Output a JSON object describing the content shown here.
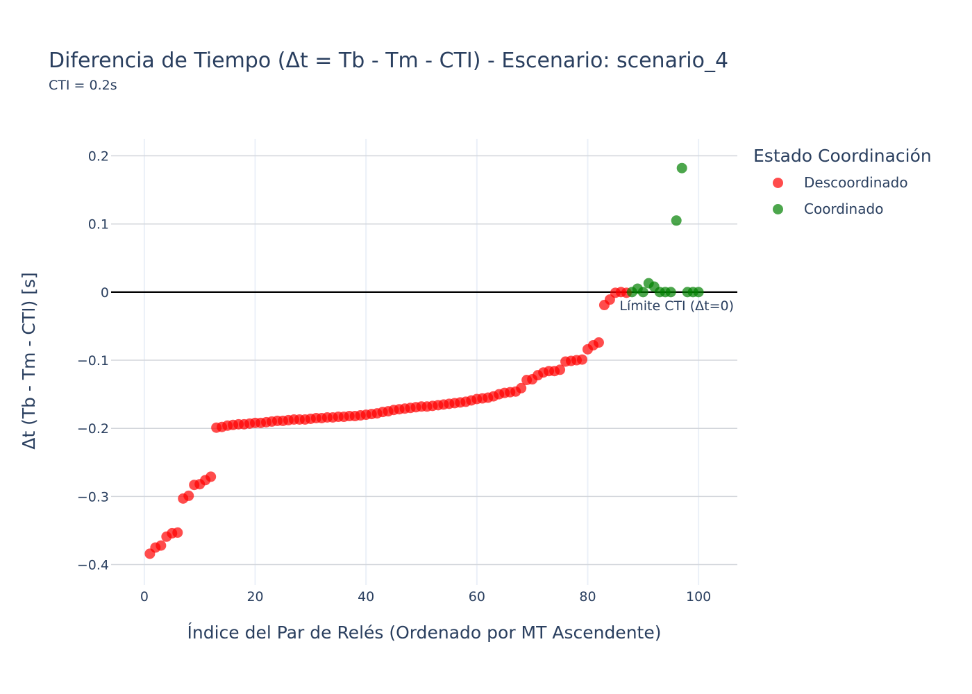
{
  "chart_data": {
    "type": "scatter",
    "title": "Diferencia de Tiempo (Δt = Tb - Tm - CTI) - Escenario: scenario_4",
    "subtitle": "CTI = 0.2s",
    "xlabel": "Índice del Par de Relés (Ordenado por MT Ascendente)",
    "ylabel": "Δt (Tb - Tm - CTI) [s]",
    "xlim": [
      -6,
      107
    ],
    "ylim": [
      -0.43,
      0.225
    ],
    "x_ticks": [
      {
        "value": 0,
        "label": "0"
      },
      {
        "value": 20,
        "label": "20"
      },
      {
        "value": 40,
        "label": "40"
      },
      {
        "value": 60,
        "label": "60"
      },
      {
        "value": 80,
        "label": "80"
      },
      {
        "value": 100,
        "label": "100"
      }
    ],
    "y_ticks": [
      {
        "value": 0.2,
        "label": "0.2"
      },
      {
        "value": 0.1,
        "label": "0.1"
      },
      {
        "value": 0,
        "label": "0"
      },
      {
        "value": -0.1,
        "label": "−0.1"
      },
      {
        "value": -0.2,
        "label": "−0.2"
      },
      {
        "value": -0.3,
        "label": "−0.3"
      },
      {
        "value": -0.4,
        "label": "−0.4"
      }
    ],
    "grid": true,
    "legend_title": "Estado Coordinación",
    "legend_position": "right",
    "reference_line": {
      "y": 0,
      "label": "Límite CTI (Δt=0)"
    },
    "series": [
      {
        "name": "Descoordinado",
        "color": "#ff0000",
        "points": [
          [
            1,
            -0.384
          ],
          [
            2,
            -0.375
          ],
          [
            3,
            -0.372
          ],
          [
            4,
            -0.359
          ],
          [
            5,
            -0.354
          ],
          [
            6,
            -0.353
          ],
          [
            7,
            -0.303
          ],
          [
            8,
            -0.299
          ],
          [
            9,
            -0.283
          ],
          [
            10,
            -0.282
          ],
          [
            11,
            -0.276
          ],
          [
            12,
            -0.271
          ],
          [
            13,
            -0.199
          ],
          [
            14,
            -0.198
          ],
          [
            15,
            -0.196
          ],
          [
            16,
            -0.195
          ],
          [
            17,
            -0.194
          ],
          [
            18,
            -0.194
          ],
          [
            19,
            -0.193
          ],
          [
            20,
            -0.192
          ],
          [
            21,
            -0.192
          ],
          [
            22,
            -0.191
          ],
          [
            23,
            -0.19
          ],
          [
            24,
            -0.189
          ],
          [
            25,
            -0.189
          ],
          [
            26,
            -0.188
          ],
          [
            27,
            -0.187
          ],
          [
            28,
            -0.187
          ],
          [
            29,
            -0.187
          ],
          [
            30,
            -0.186
          ],
          [
            31,
            -0.185
          ],
          [
            32,
            -0.185
          ],
          [
            33,
            -0.184
          ],
          [
            34,
            -0.184
          ],
          [
            35,
            -0.183
          ],
          [
            36,
            -0.183
          ],
          [
            37,
            -0.182
          ],
          [
            38,
            -0.182
          ],
          [
            39,
            -0.181
          ],
          [
            40,
            -0.18
          ],
          [
            41,
            -0.179
          ],
          [
            42,
            -0.178
          ],
          [
            43,
            -0.176
          ],
          [
            44,
            -0.175
          ],
          [
            45,
            -0.173
          ],
          [
            46,
            -0.172
          ],
          [
            47,
            -0.171
          ],
          [
            48,
            -0.17
          ],
          [
            49,
            -0.169
          ],
          [
            50,
            -0.168
          ],
          [
            51,
            -0.168
          ],
          [
            52,
            -0.167
          ],
          [
            53,
            -0.166
          ],
          [
            54,
            -0.165
          ],
          [
            55,
            -0.164
          ],
          [
            56,
            -0.163
          ],
          [
            57,
            -0.162
          ],
          [
            58,
            -0.161
          ],
          [
            59,
            -0.159
          ],
          [
            60,
            -0.157
          ],
          [
            61,
            -0.156
          ],
          [
            62,
            -0.155
          ],
          [
            63,
            -0.153
          ],
          [
            64,
            -0.15
          ],
          [
            65,
            -0.148
          ],
          [
            66,
            -0.147
          ],
          [
            67,
            -0.146
          ],
          [
            68,
            -0.141
          ],
          [
            69,
            -0.129
          ],
          [
            70,
            -0.128
          ],
          [
            71,
            -0.122
          ],
          [
            72,
            -0.118
          ],
          [
            73,
            -0.116
          ],
          [
            74,
            -0.116
          ],
          [
            75,
            -0.114
          ],
          [
            76,
            -0.102
          ],
          [
            77,
            -0.101
          ],
          [
            78,
            -0.1
          ],
          [
            79,
            -0.099
          ],
          [
            80,
            -0.084
          ],
          [
            81,
            -0.078
          ],
          [
            82,
            -0.074
          ],
          [
            83,
            -0.019
          ],
          [
            84,
            -0.011
          ],
          [
            85,
            -0.001
          ],
          [
            86,
            0.0
          ],
          [
            87,
            -0.001
          ]
        ]
      },
      {
        "name": "Coordinado",
        "color": "#008000",
        "points": [
          [
            88,
            0.0
          ],
          [
            89,
            0.005
          ],
          [
            90,
            0.0
          ],
          [
            91,
            0.013
          ],
          [
            92,
            0.008
          ],
          [
            93,
            0.0
          ],
          [
            94,
            0.0
          ],
          [
            95,
            0.0
          ],
          [
            96,
            0.105
          ],
          [
            97,
            0.182
          ],
          [
            98,
            0.0
          ],
          [
            99,
            0.0
          ],
          [
            100,
            0.0
          ]
        ]
      }
    ]
  }
}
